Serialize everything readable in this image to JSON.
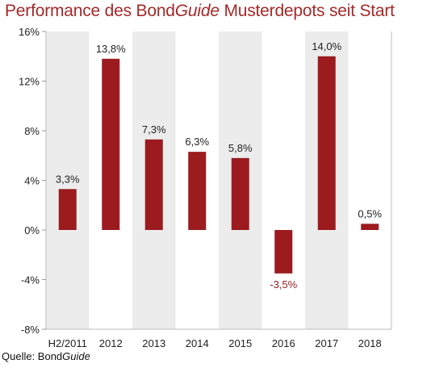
{
  "title": {
    "prefix": "Performance des Bond",
    "italic": "Guide",
    "suffix": " Musterdepots seit Start"
  },
  "source": {
    "prefix": "Quelle: Bond",
    "italic": "Guide"
  },
  "colors": {
    "bar": "#9b1b1f",
    "title": "#a32a2a",
    "shade": "#ececec",
    "negative_label": "#9b1b1f"
  },
  "chart_data": {
    "type": "bar",
    "categories": [
      "H2/2011",
      "2012",
      "2013",
      "2014",
      "2015",
      "2016",
      "2017",
      "2018"
    ],
    "values": [
      3.3,
      13.8,
      7.3,
      6.3,
      5.8,
      -3.5,
      14.0,
      0.5
    ],
    "data_labels": [
      "3,3%",
      "13,8%",
      "7,3%",
      "6,3%",
      "5,8%",
      "-3,5%",
      "14,0%",
      "0,5%"
    ],
    "ylim": [
      -8,
      16
    ],
    "yticks": [
      16,
      12,
      8,
      4,
      0,
      -4,
      -8
    ],
    "ytick_labels": [
      "16%",
      "12%",
      "8%",
      "4%",
      "0%",
      "-4%",
      "-8%"
    ],
    "shaded_columns": [
      0,
      2,
      4,
      6
    ],
    "grid": false,
    "legend": "none"
  }
}
